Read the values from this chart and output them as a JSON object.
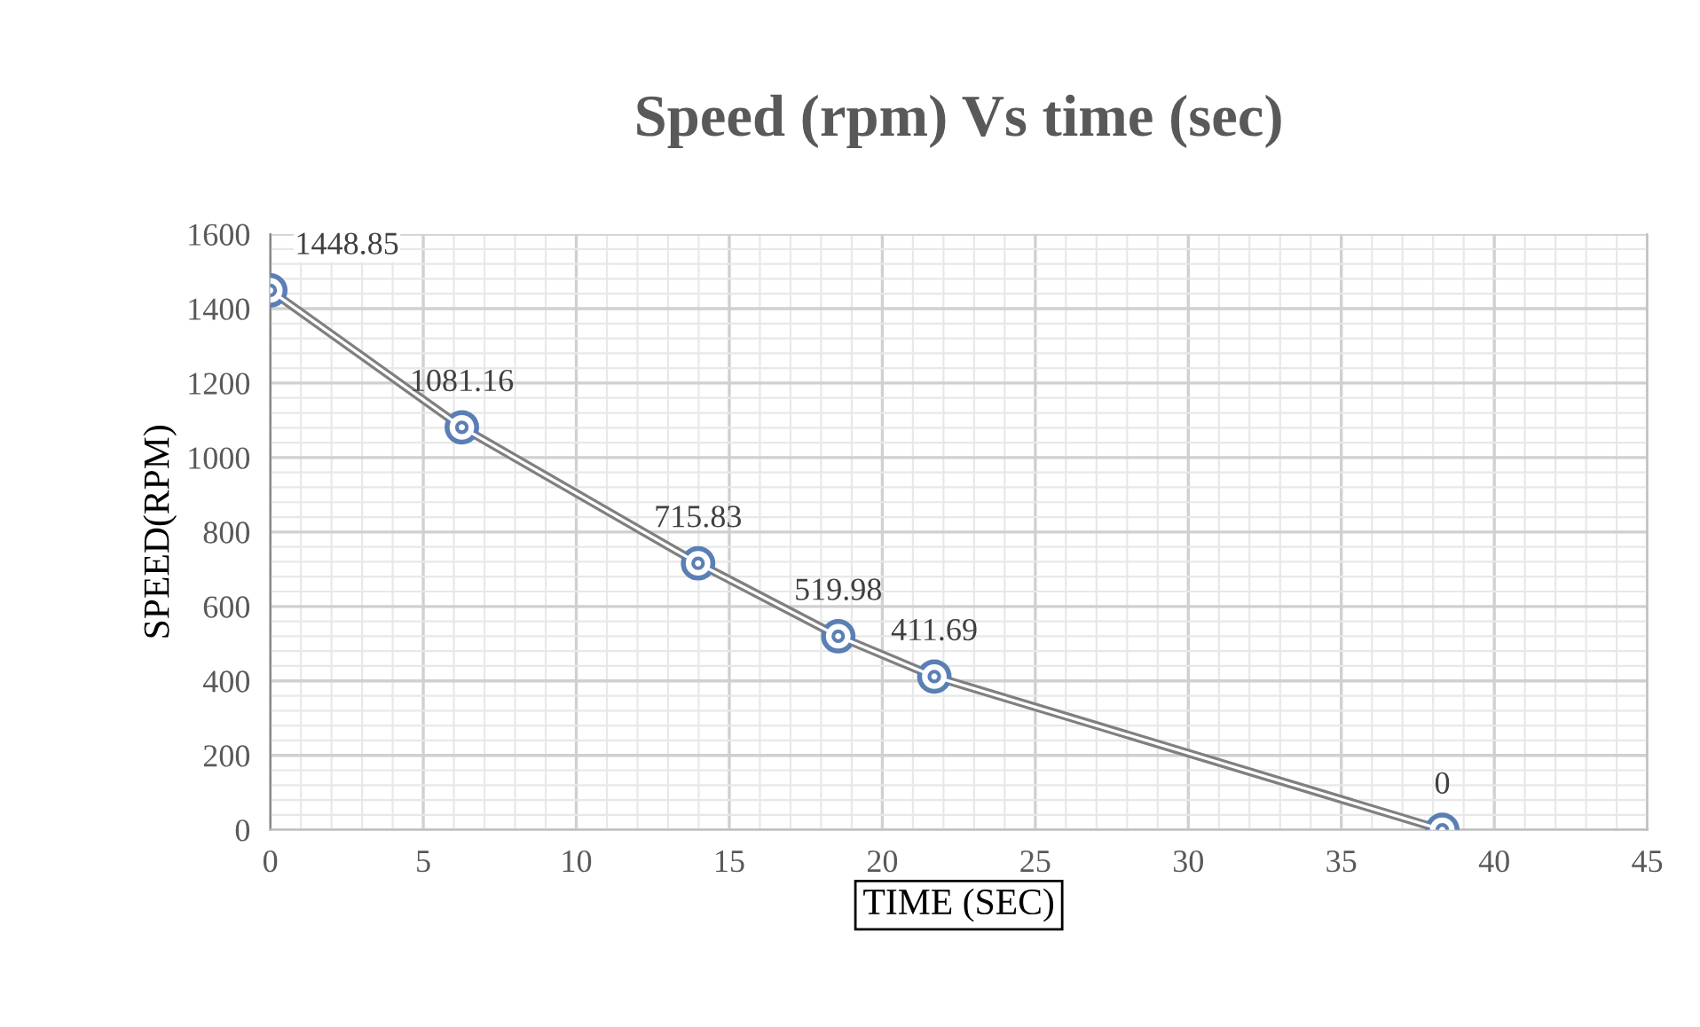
{
  "chart_data": {
    "type": "line",
    "title": "Speed (rpm) Vs time (sec)",
    "xlabel": "TIME (SEC)",
    "ylabel": "SPEED(RPM)",
    "x": [
      0,
      6.26,
      13.98,
      18.56,
      21.7,
      38.3
    ],
    "series": [
      {
        "color": "#5b7fb5",
        "values": [
          1448.85,
          1081.16,
          715.83,
          519.98,
          411.69,
          0
        ]
      }
    ],
    "xlim": [
      0,
      45
    ],
    "xticks": [
      0,
      5,
      10,
      15,
      20,
      25,
      30,
      35,
      40,
      45
    ],
    "ylim": [
      0,
      1600
    ],
    "yticks": [
      0,
      200,
      400,
      600,
      800,
      1000,
      1200,
      1400,
      1600
    ],
    "grid": true,
    "marker": "circle",
    "line_style": "solid",
    "data_labels": true
  }
}
